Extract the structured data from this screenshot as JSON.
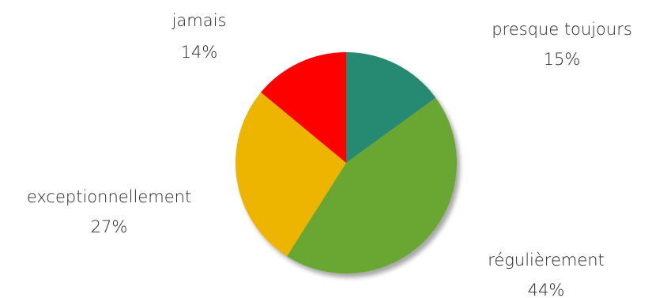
{
  "chart_data": {
    "type": "pie",
    "title": "",
    "slices": [
      {
        "label": "presque toujours",
        "value": 15,
        "value_label": "15%",
        "color": "#268A73"
      },
      {
        "label": "régulièrement",
        "value": 44,
        "value_label": "44%",
        "color": "#6AA631"
      },
      {
        "label": "exceptionnellement",
        "value": 27,
        "value_label": "27%",
        "color": "#EEB500"
      },
      {
        "label": "jamais",
        "value": 14,
        "value_label": "14%",
        "color": "#FF0000"
      }
    ],
    "start_angle_deg": 0,
    "direction": "clockwise",
    "legend": "none",
    "labels": "outside"
  }
}
